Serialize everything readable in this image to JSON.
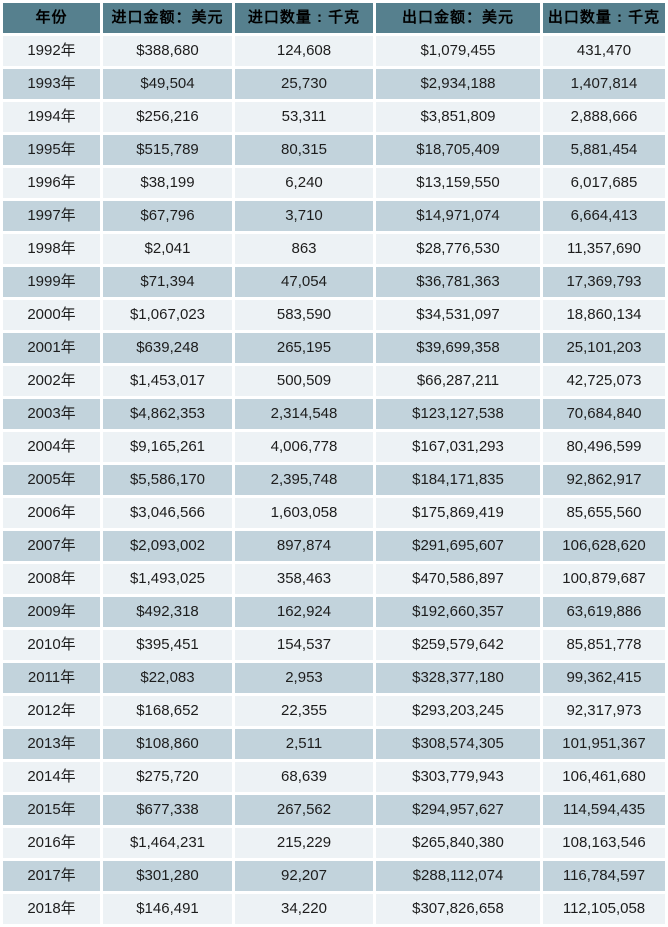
{
  "chart_data": {
    "type": "table",
    "columns": [
      "年份",
      "进口金额：美元",
      "进口数量 : 千克",
      "出口金额：美元",
      "出口数量 : 千克"
    ],
    "rows": [
      [
        "1992年",
        "$388,680",
        "124,608",
        "$1,079,455",
        "431,470"
      ],
      [
        "1993年",
        "$49,504",
        "25,730",
        "$2,934,188",
        "1,407,814"
      ],
      [
        "1994年",
        "$256,216",
        "53,311",
        "$3,851,809",
        "2,888,666"
      ],
      [
        "1995年",
        "$515,789",
        "80,315",
        "$18,705,409",
        "5,881,454"
      ],
      [
        "1996年",
        "$38,199",
        "6,240",
        "$13,159,550",
        "6,017,685"
      ],
      [
        "1997年",
        "$67,796",
        "3,710",
        "$14,971,074",
        "6,664,413"
      ],
      [
        "1998年",
        "$2,041",
        "863",
        "$28,776,530",
        "11,357,690"
      ],
      [
        "1999年",
        "$71,394",
        "47,054",
        "$36,781,363",
        "17,369,793"
      ],
      [
        "2000年",
        "$1,067,023",
        "583,590",
        "$34,531,097",
        "18,860,134"
      ],
      [
        "2001年",
        "$639,248",
        "265,195",
        "$39,699,358",
        "25,101,203"
      ],
      [
        "2002年",
        "$1,453,017",
        "500,509",
        "$66,287,211",
        "42,725,073"
      ],
      [
        "2003年",
        "$4,862,353",
        "2,314,548",
        "$123,127,538",
        "70,684,840"
      ],
      [
        "2004年",
        "$9,165,261",
        "4,006,778",
        "$167,031,293",
        "80,496,599"
      ],
      [
        "2005年",
        "$5,586,170",
        "2,395,748",
        "$184,171,835",
        "92,862,917"
      ],
      [
        "2006年",
        "$3,046,566",
        "1,603,058",
        "$175,869,419",
        "85,655,560"
      ],
      [
        "2007年",
        "$2,093,002",
        "897,874",
        "$291,695,607",
        "106,628,620"
      ],
      [
        "2008年",
        "$1,493,025",
        "358,463",
        "$470,586,897",
        "100,879,687"
      ],
      [
        "2009年",
        "$492,318",
        "162,924",
        "$192,660,357",
        "63,619,886"
      ],
      [
        "2010年",
        "$395,451",
        "154,537",
        "$259,579,642",
        "85,851,778"
      ],
      [
        "2011年",
        "$22,083",
        "2,953",
        "$328,377,180",
        "99,362,415"
      ],
      [
        "2012年",
        "$168,652",
        "22,355",
        "$293,203,245",
        "92,317,973"
      ],
      [
        "2013年",
        "$108,860",
        "2,511",
        "$308,574,305",
        "101,951,367"
      ],
      [
        "2014年",
        "$275,720",
        "68,639",
        "$303,779,943",
        "106,461,680"
      ],
      [
        "2015年",
        "$677,338",
        "267,562",
        "$294,957,627",
        "114,594,435"
      ],
      [
        "2016年",
        "$1,464,231",
        "215,229",
        "$265,840,380",
        "108,163,546"
      ],
      [
        "2017年",
        "$301,280",
        "92,207",
        "$288,112,074",
        "116,784,597"
      ],
      [
        "2018年",
        "$146,491",
        "34,220",
        "$307,826,658",
        "112,105,058"
      ]
    ]
  },
  "colors": {
    "header_bg": "#56808e",
    "row_light_bg": "#edf2f5",
    "row_dark_bg": "#c2d3dc",
    "grid": "#ffffff",
    "text": "#1d1d1d",
    "header_text": "#000000"
  }
}
